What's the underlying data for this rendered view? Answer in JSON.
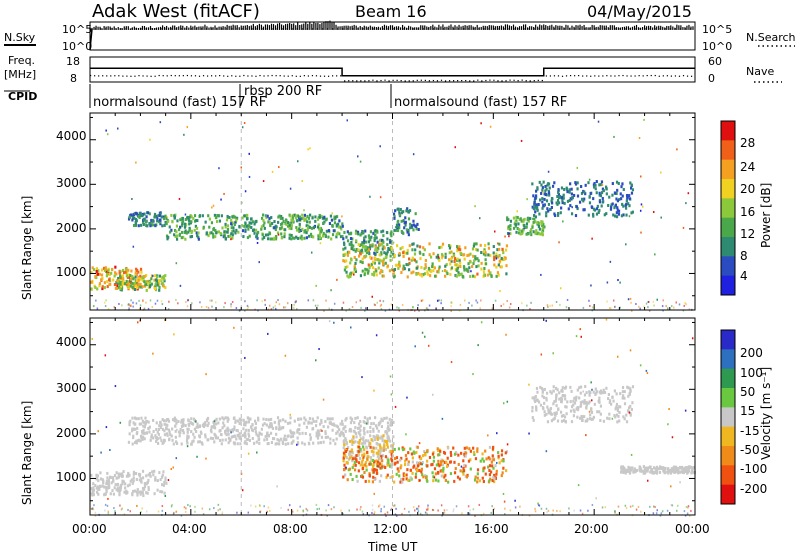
{
  "header": {
    "radar": "Adak West (fitACF)",
    "beam": "Beam 16",
    "date": "04/May/2015"
  },
  "nsky_panel": {
    "left_label": "N.Sky",
    "right_label": "N.Search",
    "left_ticks": [
      "10^5",
      "10^0"
    ],
    "right_ticks": [
      "10^5",
      "10^0"
    ]
  },
  "freq_panel": {
    "left_label_1": "Freq.",
    "left_label_2": "[MHz]",
    "right_label": "Nave",
    "left_ticks": [
      "18",
      "8"
    ],
    "right_ticks": [
      "60",
      "0"
    ]
  },
  "cpid_panel": {
    "label": "CPID",
    "segments": [
      {
        "text": "normalsound (fast) 157 RF",
        "start_hour": 0
      },
      {
        "text": "rbsp 200 RF",
        "start_hour": 6
      },
      {
        "text": "normalsound (fast) 157 RF",
        "start_hour": 12
      }
    ]
  },
  "time_axis": {
    "label": "Time UT",
    "ticks": [
      "00:00",
      "04:00",
      "08:00",
      "12:00",
      "16:00",
      "20:00",
      "00:00"
    ]
  },
  "power_panel": {
    "ylabel": "Slant Range [km]",
    "yticks": [
      "4000",
      "3000",
      "2000",
      "1000"
    ],
    "colorbar_label": "Power [dB]",
    "colorbar_ticks": [
      "28",
      "24",
      "20",
      "16",
      "12",
      "8",
      "4"
    ],
    "colors": [
      "#2020e0",
      "#2a4cc0",
      "#2e8a70",
      "#4aa84a",
      "#8cc83c",
      "#f0d020",
      "#f5a020",
      "#f06018",
      "#e01010"
    ]
  },
  "velocity_panel": {
    "ylabel": "Slant Range [km]",
    "yticks": [
      "4000",
      "3000",
      "2000",
      "1000"
    ],
    "colorbar_label": "Velocity [m s⁻¹]",
    "colorbar_ticks": [
      "200",
      "100",
      "50",
      "15",
      "-15",
      "-50",
      "-100",
      "-200"
    ],
    "colors": [
      "#2a2ac8",
      "#2e70c0",
      "#2e9a50",
      "#6ac840",
      "#c8c8c8",
      "#f0b820",
      "#f08a18",
      "#f05010",
      "#e01010"
    ]
  },
  "chart_data": [
    {
      "type": "line",
      "title": "N.Sky / N.Search",
      "x_unit": "hour UT",
      "x_range": [
        0,
        24
      ],
      "series": [
        {
          "name": "N.Sky",
          "x": [
            0,
            2,
            4,
            6,
            8,
            9.5,
            10,
            12,
            16,
            20,
            24
          ],
          "y": [
            4,
            4,
            4.2,
            4.3,
            4.6,
            5,
            4.2,
            4.2,
            4.3,
            4.2,
            4.2
          ]
        },
        {
          "name": "N.Search",
          "x": [
            0,
            4,
            8,
            12,
            16,
            20,
            24
          ],
          "y": [
            4.1,
            4.1,
            4.2,
            4.1,
            4.1,
            4.1,
            4.1
          ]
        }
      ]
    },
    {
      "type": "line",
      "title": "Freq. / Nave",
      "x_unit": "hour UT",
      "x_range": [
        0,
        24
      ],
      "series": [
        {
          "name": "Freq.",
          "x": [
            0,
            10,
            10,
            18,
            18,
            24
          ],
          "y": [
            13.5,
            13.5,
            10.5,
            10.5,
            13.5,
            13.5
          ]
        },
        {
          "name": "Nave",
          "x": [
            0,
            10,
            10,
            18,
            18,
            24
          ],
          "y": [
            16,
            16,
            5,
            5,
            16,
            16
          ]
        }
      ]
    },
    {
      "type": "scatter",
      "title": "Power",
      "x_unit": "hour UT",
      "y_unit": "Slant Range [km]",
      "x_range": [
        0,
        24
      ],
      "y_range": [
        180,
        4600
      ],
      "bands": [
        {
          "x": [
            0,
            2
          ],
          "y": [
            680,
            1180
          ],
          "value_range": [
            14,
            28
          ]
        },
        {
          "x": [
            1,
            3
          ],
          "y": [
            650,
            1000
          ],
          "value_range": [
            8,
            22
          ]
        },
        {
          "x": [
            1.5,
            3
          ],
          "y": [
            2100,
            2400
          ],
          "value_range": [
            4,
            12
          ]
        },
        {
          "x": [
            3,
            10
          ],
          "y": [
            1800,
            2350
          ],
          "value_range": [
            6,
            16
          ]
        },
        {
          "x": [
            10,
            12
          ],
          "y": [
            1450,
            2000
          ],
          "value_range": [
            6,
            14
          ]
        },
        {
          "x": [
            12,
            13
          ],
          "y": [
            1900,
            2500
          ],
          "value_range": [
            4,
            12
          ]
        },
        {
          "x": [
            10,
            16.5
          ],
          "y": [
            950,
            1700
          ],
          "value_range": [
            8,
            24
          ]
        },
        {
          "x": [
            16.5,
            18
          ],
          "y": [
            1900,
            2300
          ],
          "value_range": [
            8,
            16
          ]
        },
        {
          "x": [
            17.5,
            21.5
          ],
          "y": [
            2300,
            3100
          ],
          "value_range": [
            4,
            10
          ]
        }
      ]
    },
    {
      "type": "scatter",
      "title": "Velocity",
      "x_unit": "hour UT",
      "y_unit": "Slant Range [km]",
      "x_range": [
        0,
        24
      ],
      "y_range": [
        180,
        4600
      ],
      "bands": [
        {
          "x": [
            0,
            3
          ],
          "y": [
            650,
            1200
          ],
          "value_range": [
            -15,
            15
          ]
        },
        {
          "x": [
            1.5,
            12
          ],
          "y": [
            1800,
            2400
          ],
          "value_range": [
            -15,
            15
          ]
        },
        {
          "x": [
            10,
            12
          ],
          "y": [
            1300,
            2000
          ],
          "value_range": [
            -50,
            15
          ]
        },
        {
          "x": [
            10,
            16.5
          ],
          "y": [
            950,
            1750
          ],
          "value_range": [
            -200,
            50
          ]
        },
        {
          "x": [
            17.5,
            21.5
          ],
          "y": [
            2300,
            3100
          ],
          "value_range": [
            -15,
            15
          ]
        },
        {
          "x": [
            21,
            24
          ],
          "y": [
            1150,
            1300
          ],
          "value_range": [
            -15,
            15
          ]
        }
      ]
    }
  ]
}
